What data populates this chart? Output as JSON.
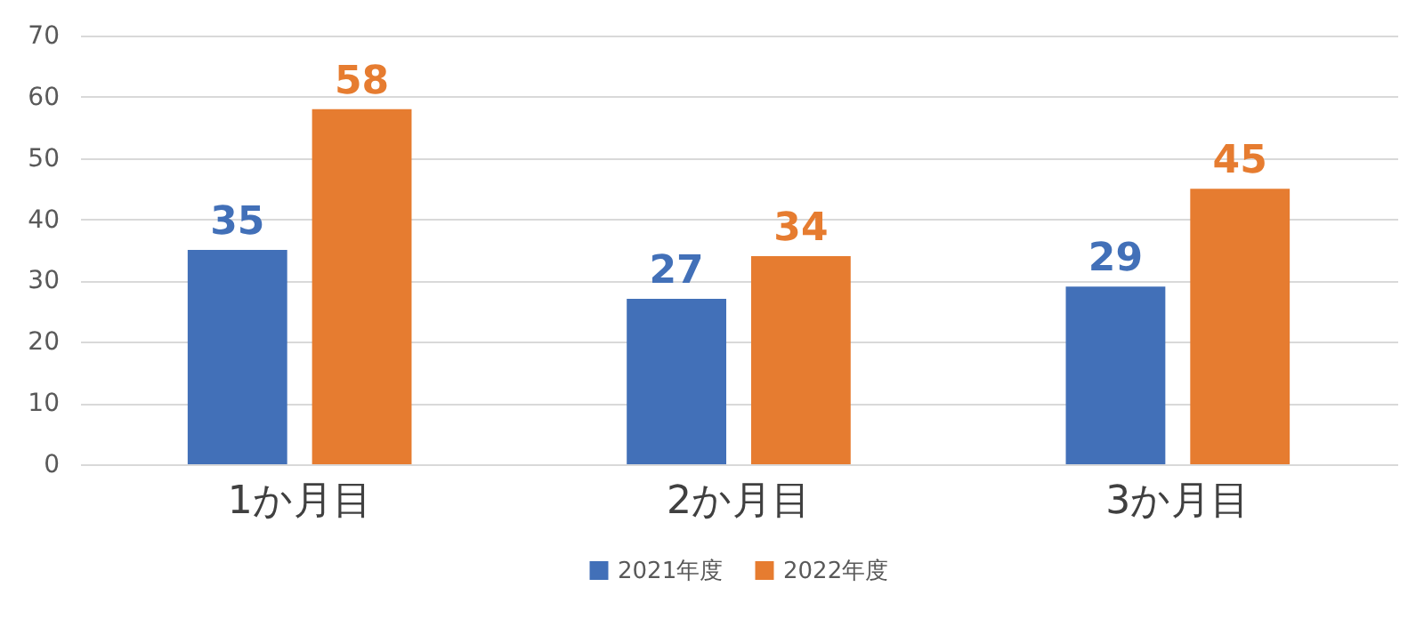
{
  "chart_data": {
    "type": "bar",
    "categories": [
      "1か月目",
      "2か月目",
      "3か月目"
    ],
    "series": [
      {
        "name": "2021年度",
        "color": "#4270b8",
        "values": [
          35,
          27,
          29
        ]
      },
      {
        "name": "2022年度",
        "color": "#e67c30",
        "values": [
          58,
          34,
          45
        ]
      }
    ],
    "ylim": [
      0,
      70
    ],
    "yticks": [
      0,
      10,
      20,
      30,
      40,
      50,
      60,
      70
    ],
    "grid": "y",
    "legend": "bottom",
    "data_labels": true
  }
}
